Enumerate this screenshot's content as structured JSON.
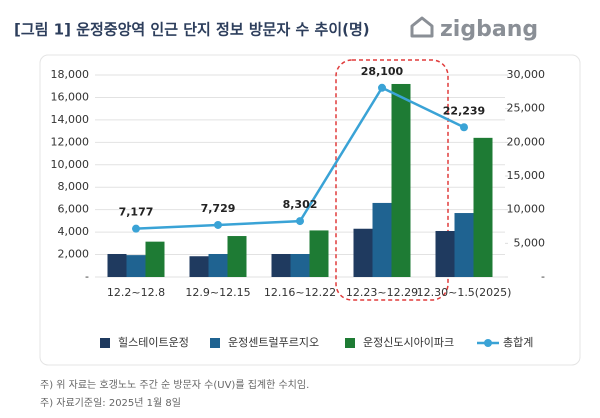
{
  "chart_data": {
    "type": "bar",
    "title": "[그림 1] 운정중앙역 인근 단지 정보 방문자 수 추이(명)",
    "logo": "zigbang",
    "categories": [
      "12.2~12.8",
      "12.9~12.15",
      "12.16~12.22",
      "12.23~12.29",
      "12.30~1.5(2025)"
    ],
    "series": [
      {
        "name": "힐스테이트운정",
        "type": "bar",
        "color": "#1f3a5f",
        "values": [
          2050,
          1850,
          2050,
          4300,
          4100
        ]
      },
      {
        "name": "운정센트럴푸르지오",
        "type": "bar",
        "color": "#1f6391",
        "values": [
          1950,
          2050,
          2050,
          6600,
          5700
        ]
      },
      {
        "name": "운정신도시아이파크",
        "type": "bar",
        "color": "#1e7b34",
        "values": [
          3150,
          3650,
          4150,
          17200,
          12400
        ]
      },
      {
        "name": "총합계",
        "type": "line",
        "axis": "y2",
        "color": "#3aa3d6",
        "values": [
          7177,
          7729,
          8302,
          28100,
          22239
        ],
        "value_labels": [
          "7,177",
          "7,729",
          "8,302",
          "28,100",
          "22,239"
        ]
      }
    ],
    "ylim": [
      0,
      18000
    ],
    "yticks": [
      {
        "value": 0,
        "label": "-"
      },
      {
        "value": 2000,
        "label": "2,000"
      },
      {
        "value": 4000,
        "label": "4,000"
      },
      {
        "value": 6000,
        "label": "6,000"
      },
      {
        "value": 8000,
        "label": "8,000"
      },
      {
        "value": 10000,
        "label": "10,000"
      },
      {
        "value": 12000,
        "label": "12,000"
      },
      {
        "value": 14000,
        "label": "14,000"
      },
      {
        "value": 16000,
        "label": "16,000"
      },
      {
        "value": 18000,
        "label": "18,000"
      }
    ],
    "y2lim": [
      0,
      30000
    ],
    "y2ticks": [
      {
        "value": 0,
        "label": "-"
      },
      {
        "value": 5000,
        "label": "5,000"
      },
      {
        "value": 10000,
        "label": "10,000"
      },
      {
        "value": 15000,
        "label": "15,000"
      },
      {
        "value": 20000,
        "label": "20,000"
      },
      {
        "value": 25000,
        "label": "25,000"
      },
      {
        "value": 30000,
        "label": "30,000"
      }
    ],
    "grid": true,
    "notes": [
      "주) 위 자료는 호갱노노 주간 순 방문자 수(UV)를 집계한 수치임.",
      "주) 자료기준일: 2025년 1월 8일"
    ]
  }
}
